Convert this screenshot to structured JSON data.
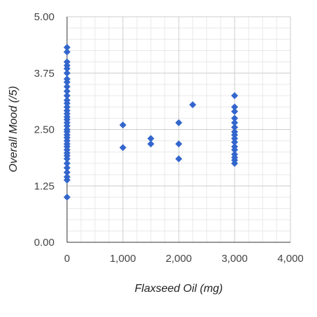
{
  "chart_data": {
    "type": "scatter",
    "xlabel": "Flaxseed Oil (mg)",
    "ylabel": "Overall Mood (/5)",
    "xlim": [
      0,
      4000
    ],
    "ylim": [
      0,
      5
    ],
    "x_ticks": [
      "0",
      "1,000",
      "2,000",
      "3,000",
      "4,000"
    ],
    "y_ticks": [
      "0.00",
      "1.25",
      "2.50",
      "3.75",
      "5.00"
    ],
    "x_tick_values": [
      0,
      1000,
      2000,
      3000,
      4000
    ],
    "y_tick_values": [
      0,
      1.25,
      2.5,
      3.75,
      5
    ],
    "x_minor_per_major": 4,
    "y_minor_per_major": 5,
    "grid": true,
    "legend": "none",
    "marker": "diamond",
    "colors": {
      "marker": "#3366cc",
      "major_grid": "#cccccc",
      "minor_grid": "#e8e8e8",
      "axis": "#333333"
    },
    "series": [
      {
        "points": [
          [
            0,
            4.32
          ],
          [
            0,
            4.22
          ],
          [
            0,
            4.0
          ],
          [
            0,
            3.92
          ],
          [
            0,
            3.85
          ],
          [
            0,
            3.75
          ],
          [
            0,
            3.62
          ],
          [
            0,
            3.55
          ],
          [
            0,
            3.45
          ],
          [
            0,
            3.35
          ],
          [
            0,
            3.25
          ],
          [
            0,
            3.15
          ],
          [
            0,
            3.08
          ],
          [
            0,
            3.0
          ],
          [
            0,
            2.92
          ],
          [
            0,
            2.85
          ],
          [
            0,
            2.78
          ],
          [
            0,
            2.72
          ],
          [
            0,
            2.65
          ],
          [
            0,
            2.58
          ],
          [
            0,
            2.5
          ],
          [
            0,
            2.45
          ],
          [
            0,
            2.38
          ],
          [
            0,
            2.32
          ],
          [
            0,
            2.25
          ],
          [
            0,
            2.18
          ],
          [
            0,
            2.12
          ],
          [
            0,
            2.05
          ],
          [
            0,
            1.98
          ],
          [
            0,
            1.92
          ],
          [
            0,
            1.85
          ],
          [
            0,
            1.75
          ],
          [
            0,
            1.65
          ],
          [
            0,
            1.55
          ],
          [
            0,
            1.45
          ],
          [
            0,
            1.38
          ],
          [
            0,
            1.0
          ],
          [
            1000,
            2.6
          ],
          [
            1000,
            2.1
          ],
          [
            1500,
            2.3
          ],
          [
            1500,
            2.18
          ],
          [
            2000,
            2.65
          ],
          [
            2000,
            2.18
          ],
          [
            2000,
            1.85
          ],
          [
            2250,
            3.05
          ],
          [
            3000,
            3.25
          ],
          [
            3000,
            3.0
          ],
          [
            3000,
            2.9
          ],
          [
            3000,
            2.75
          ],
          [
            3000,
            2.65
          ],
          [
            3000,
            2.55
          ],
          [
            3000,
            2.45
          ],
          [
            3000,
            2.38
          ],
          [
            3000,
            2.3
          ],
          [
            3000,
            2.22
          ],
          [
            3000,
            2.12
          ],
          [
            3000,
            2.05
          ],
          [
            3000,
            1.95
          ],
          [
            3000,
            1.88
          ],
          [
            3000,
            1.82
          ],
          [
            3000,
            1.75
          ]
        ]
      }
    ]
  }
}
